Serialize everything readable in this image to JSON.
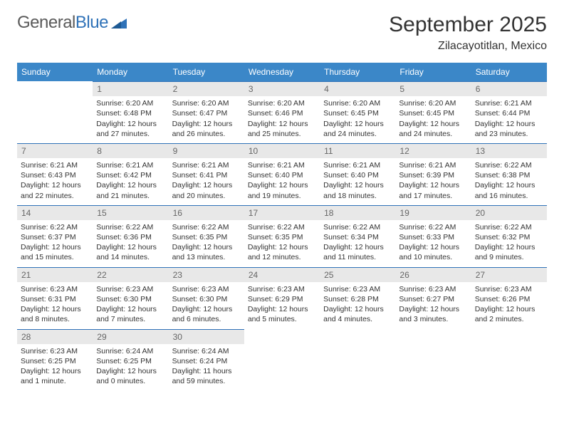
{
  "logo": {
    "text1": "General",
    "text2": "Blue"
  },
  "title": "September 2025",
  "location": "Zilacayotitlan, Mexico",
  "header_bg": "#3b87c8",
  "accent_line": "#2f72b8",
  "daynum_bg": "#e8e8e8",
  "text_color": "#333333",
  "cell_font_size": 10.5,
  "header_font_size": 12,
  "title_font_size": 30,
  "location_font_size": 16,
  "dayNames": [
    "Sunday",
    "Monday",
    "Tuesday",
    "Wednesday",
    "Thursday",
    "Friday",
    "Saturday"
  ],
  "weeks": [
    [
      {
        "n": "",
        "sr": "",
        "ss": "",
        "dl": ""
      },
      {
        "n": "1",
        "sr": "Sunrise: 6:20 AM",
        "ss": "Sunset: 6:48 PM",
        "dl": "Daylight: 12 hours and 27 minutes."
      },
      {
        "n": "2",
        "sr": "Sunrise: 6:20 AM",
        "ss": "Sunset: 6:47 PM",
        "dl": "Daylight: 12 hours and 26 minutes."
      },
      {
        "n": "3",
        "sr": "Sunrise: 6:20 AM",
        "ss": "Sunset: 6:46 PM",
        "dl": "Daylight: 12 hours and 25 minutes."
      },
      {
        "n": "4",
        "sr": "Sunrise: 6:20 AM",
        "ss": "Sunset: 6:45 PM",
        "dl": "Daylight: 12 hours and 24 minutes."
      },
      {
        "n": "5",
        "sr": "Sunrise: 6:20 AM",
        "ss": "Sunset: 6:45 PM",
        "dl": "Daylight: 12 hours and 24 minutes."
      },
      {
        "n": "6",
        "sr": "Sunrise: 6:21 AM",
        "ss": "Sunset: 6:44 PM",
        "dl": "Daylight: 12 hours and 23 minutes."
      }
    ],
    [
      {
        "n": "7",
        "sr": "Sunrise: 6:21 AM",
        "ss": "Sunset: 6:43 PM",
        "dl": "Daylight: 12 hours and 22 minutes."
      },
      {
        "n": "8",
        "sr": "Sunrise: 6:21 AM",
        "ss": "Sunset: 6:42 PM",
        "dl": "Daylight: 12 hours and 21 minutes."
      },
      {
        "n": "9",
        "sr": "Sunrise: 6:21 AM",
        "ss": "Sunset: 6:41 PM",
        "dl": "Daylight: 12 hours and 20 minutes."
      },
      {
        "n": "10",
        "sr": "Sunrise: 6:21 AM",
        "ss": "Sunset: 6:40 PM",
        "dl": "Daylight: 12 hours and 19 minutes."
      },
      {
        "n": "11",
        "sr": "Sunrise: 6:21 AM",
        "ss": "Sunset: 6:40 PM",
        "dl": "Daylight: 12 hours and 18 minutes."
      },
      {
        "n": "12",
        "sr": "Sunrise: 6:21 AM",
        "ss": "Sunset: 6:39 PM",
        "dl": "Daylight: 12 hours and 17 minutes."
      },
      {
        "n": "13",
        "sr": "Sunrise: 6:22 AM",
        "ss": "Sunset: 6:38 PM",
        "dl": "Daylight: 12 hours and 16 minutes."
      }
    ],
    [
      {
        "n": "14",
        "sr": "Sunrise: 6:22 AM",
        "ss": "Sunset: 6:37 PM",
        "dl": "Daylight: 12 hours and 15 minutes."
      },
      {
        "n": "15",
        "sr": "Sunrise: 6:22 AM",
        "ss": "Sunset: 6:36 PM",
        "dl": "Daylight: 12 hours and 14 minutes."
      },
      {
        "n": "16",
        "sr": "Sunrise: 6:22 AM",
        "ss": "Sunset: 6:35 PM",
        "dl": "Daylight: 12 hours and 13 minutes."
      },
      {
        "n": "17",
        "sr": "Sunrise: 6:22 AM",
        "ss": "Sunset: 6:35 PM",
        "dl": "Daylight: 12 hours and 12 minutes."
      },
      {
        "n": "18",
        "sr": "Sunrise: 6:22 AM",
        "ss": "Sunset: 6:34 PM",
        "dl": "Daylight: 12 hours and 11 minutes."
      },
      {
        "n": "19",
        "sr": "Sunrise: 6:22 AM",
        "ss": "Sunset: 6:33 PM",
        "dl": "Daylight: 12 hours and 10 minutes."
      },
      {
        "n": "20",
        "sr": "Sunrise: 6:22 AM",
        "ss": "Sunset: 6:32 PM",
        "dl": "Daylight: 12 hours and 9 minutes."
      }
    ],
    [
      {
        "n": "21",
        "sr": "Sunrise: 6:23 AM",
        "ss": "Sunset: 6:31 PM",
        "dl": "Daylight: 12 hours and 8 minutes."
      },
      {
        "n": "22",
        "sr": "Sunrise: 6:23 AM",
        "ss": "Sunset: 6:30 PM",
        "dl": "Daylight: 12 hours and 7 minutes."
      },
      {
        "n": "23",
        "sr": "Sunrise: 6:23 AM",
        "ss": "Sunset: 6:30 PM",
        "dl": "Daylight: 12 hours and 6 minutes."
      },
      {
        "n": "24",
        "sr": "Sunrise: 6:23 AM",
        "ss": "Sunset: 6:29 PM",
        "dl": "Daylight: 12 hours and 5 minutes."
      },
      {
        "n": "25",
        "sr": "Sunrise: 6:23 AM",
        "ss": "Sunset: 6:28 PM",
        "dl": "Daylight: 12 hours and 4 minutes."
      },
      {
        "n": "26",
        "sr": "Sunrise: 6:23 AM",
        "ss": "Sunset: 6:27 PM",
        "dl": "Daylight: 12 hours and 3 minutes."
      },
      {
        "n": "27",
        "sr": "Sunrise: 6:23 AM",
        "ss": "Sunset: 6:26 PM",
        "dl": "Daylight: 12 hours and 2 minutes."
      }
    ],
    [
      {
        "n": "28",
        "sr": "Sunrise: 6:23 AM",
        "ss": "Sunset: 6:25 PM",
        "dl": "Daylight: 12 hours and 1 minute."
      },
      {
        "n": "29",
        "sr": "Sunrise: 6:24 AM",
        "ss": "Sunset: 6:25 PM",
        "dl": "Daylight: 12 hours and 0 minutes."
      },
      {
        "n": "30",
        "sr": "Sunrise: 6:24 AM",
        "ss": "Sunset: 6:24 PM",
        "dl": "Daylight: 11 hours and 59 minutes."
      },
      {
        "n": "",
        "sr": "",
        "ss": "",
        "dl": ""
      },
      {
        "n": "",
        "sr": "",
        "ss": "",
        "dl": ""
      },
      {
        "n": "",
        "sr": "",
        "ss": "",
        "dl": ""
      },
      {
        "n": "",
        "sr": "",
        "ss": "",
        "dl": ""
      }
    ]
  ]
}
